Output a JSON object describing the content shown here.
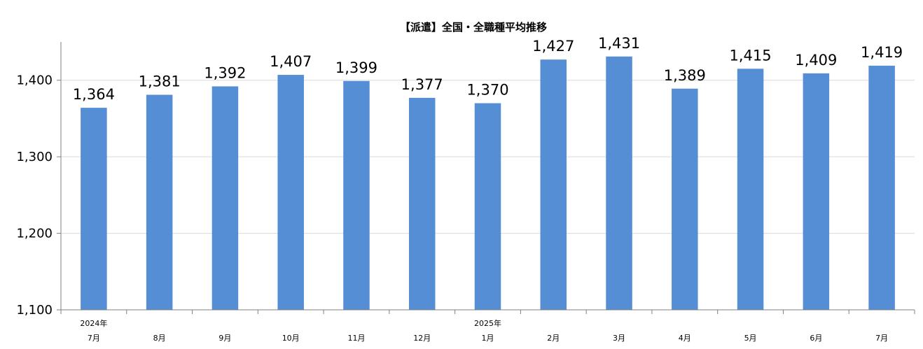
{
  "chart_data": {
    "type": "bar",
    "title": "【派遣】全国・全職種平均推移",
    "xlabel": "",
    "ylabel": "",
    "categories": [
      "7月",
      "8月",
      "9月",
      "10月",
      "11月",
      "12月",
      "1月",
      "2月",
      "3月",
      "4月",
      "5月",
      "6月",
      "7月"
    ],
    "year_labels": [
      "2024年",
      "",
      "",
      "",
      "",
      "",
      "2025年",
      "",
      "",
      "",
      "",
      "",
      ""
    ],
    "values": [
      1364,
      1381,
      1392,
      1407,
      1399,
      1377,
      1370,
      1427,
      1431,
      1389,
      1415,
      1409,
      1419
    ],
    "value_labels": [
      "1,364",
      "1,381",
      "1,392",
      "1,407",
      "1,399",
      "1,377",
      "1,370",
      "1,427",
      "1,431",
      "1,389",
      "1,415",
      "1,409",
      "1,419"
    ],
    "ylim": [
      1100,
      1450
    ],
    "yticks": [
      1100,
      1200,
      1300,
      1400
    ],
    "ytick_labels": [
      "1,100",
      "1,200",
      "1,300",
      "1,400"
    ],
    "grid": true,
    "legend": "none",
    "bar_color": "#558ED5"
  }
}
